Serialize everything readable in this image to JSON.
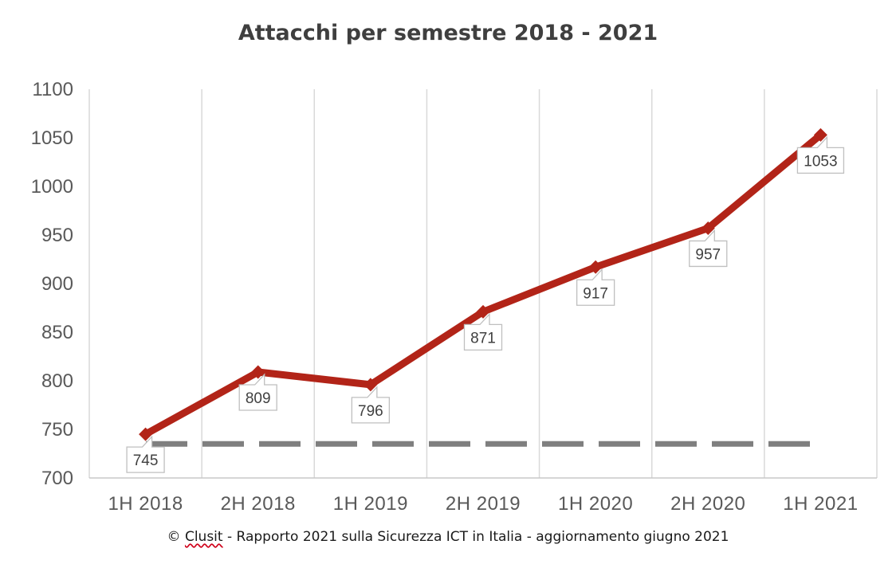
{
  "chart_data": {
    "type": "line",
    "title": "Attacchi per semestre 2018 - 2021",
    "xlabel": "",
    "ylabel": "",
    "categories": [
      "1H 2018",
      "2H 2018",
      "1H 2019",
      "2H 2019",
      "1H 2020",
      "2H 2020",
      "1H 2021"
    ],
    "series": [
      {
        "values": [
          745,
          809,
          796,
          871,
          917,
          957,
          1053
        ],
        "color": "#b22418"
      }
    ],
    "reference_line": {
      "value": 735,
      "style": "dashed",
      "color": "#7f7f7f"
    },
    "ylim": [
      700,
      1100
    ],
    "yticks": [
      700,
      750,
      800,
      850,
      900,
      950,
      1000,
      1050,
      1100
    ],
    "grid": "vertical",
    "legend": "none"
  },
  "footer": {
    "copyright": "©",
    "source": "Clusit",
    "text": " - Rapporto 2021 sulla Sicurezza ICT in Italia - aggiornamento giugno 2021"
  }
}
